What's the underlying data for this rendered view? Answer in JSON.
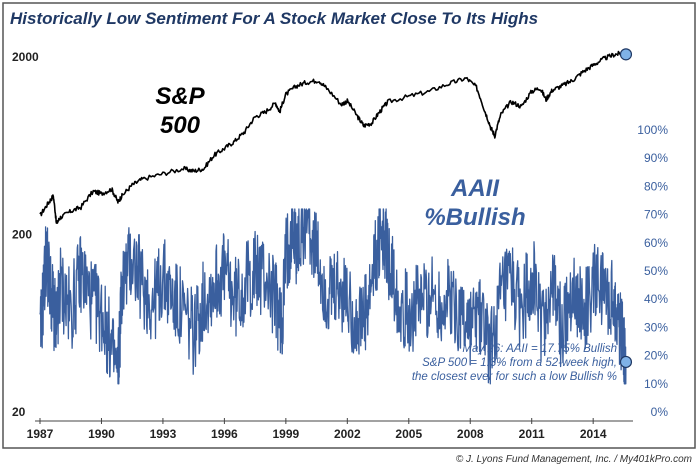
{
  "chart_data": {
    "type": "line",
    "title": "Historically Low Sentiment For A Stock Market Close To Its Highs",
    "x_ticks": [
      "1987",
      "1990",
      "1993",
      "1996",
      "1999",
      "2002",
      "2005",
      "2008",
      "2011",
      "2014"
    ],
    "x_range": [
      1987,
      2015.7
    ],
    "left_axis": {
      "scale": "log",
      "ticks": [
        "20",
        "200",
        "2000"
      ],
      "range": [
        20,
        2800
      ]
    },
    "right_axis": {
      "ticks": [
        "0%",
        "10%",
        "20%",
        "30%",
        "40%",
        "50%",
        "60%",
        "70%",
        "80%",
        "90%",
        "100%"
      ],
      "range": [
        0,
        100
      ]
    },
    "grid": false,
    "series": [
      {
        "name": "S&P\n500",
        "axis": "left",
        "color": "#000000",
        "points": [
          [
            1987.0,
            255
          ],
          [
            1987.4,
            300
          ],
          [
            1987.65,
            330
          ],
          [
            1987.8,
            230
          ],
          [
            1988.0,
            250
          ],
          [
            1988.5,
            270
          ],
          [
            1989.0,
            285
          ],
          [
            1989.6,
            350
          ],
          [
            1990.0,
            340
          ],
          [
            1990.5,
            360
          ],
          [
            1990.8,
            305
          ],
          [
            1991.0,
            330
          ],
          [
            1991.5,
            380
          ],
          [
            1992.0,
            410
          ],
          [
            1993.0,
            440
          ],
          [
            1994.0,
            470
          ],
          [
            1994.5,
            455
          ],
          [
            1995.0,
            470
          ],
          [
            1995.5,
            560
          ],
          [
            1996.0,
            610
          ],
          [
            1996.5,
            670
          ],
          [
            1997.0,
            760
          ],
          [
            1997.5,
            920
          ],
          [
            1998.0,
            980
          ],
          [
            1998.5,
            1100
          ],
          [
            1998.7,
            980
          ],
          [
            1999.0,
            1230
          ],
          [
            1999.5,
            1370
          ],
          [
            2000.0,
            1440
          ],
          [
            2000.6,
            1480
          ],
          [
            2001.0,
            1330
          ],
          [
            2001.7,
            1080
          ],
          [
            2002.0,
            1130
          ],
          [
            2002.5,
            920
          ],
          [
            2002.8,
            820
          ],
          [
            2003.2,
            850
          ],
          [
            2003.6,
            990
          ],
          [
            2004.0,
            1120
          ],
          [
            2005.0,
            1200
          ],
          [
            2006.0,
            1280
          ],
          [
            2007.0,
            1420
          ],
          [
            2007.8,
            1520
          ],
          [
            2008.3,
            1350
          ],
          [
            2008.7,
            1000
          ],
          [
            2009.0,
            800
          ],
          [
            2009.2,
            720
          ],
          [
            2009.5,
            950
          ],
          [
            2010.0,
            1120
          ],
          [
            2010.5,
            1050
          ],
          [
            2011.0,
            1280
          ],
          [
            2011.4,
            1340
          ],
          [
            2011.7,
            1150
          ],
          [
            2012.0,
            1300
          ],
          [
            2012.5,
            1380
          ],
          [
            2013.0,
            1480
          ],
          [
            2013.5,
            1650
          ],
          [
            2014.0,
            1800
          ],
          [
            2014.5,
            1950
          ],
          [
            2015.0,
            2060
          ],
          [
            2015.4,
            2100
          ],
          [
            2015.6,
            2070
          ]
        ]
      },
      {
        "name": "AAII\n%Bullish",
        "axis": "right",
        "color": "#3a5f9e",
        "points": [
          [
            1987.0,
            25
          ],
          [
            1987.3,
            55
          ],
          [
            1987.6,
            40
          ],
          [
            1987.8,
            28
          ],
          [
            1988.0,
            45
          ],
          [
            1988.5,
            35
          ],
          [
            1989.0,
            50
          ],
          [
            1989.5,
            40
          ],
          [
            1990.0,
            35
          ],
          [
            1990.4,
            25
          ],
          [
            1990.8,
            13
          ],
          [
            1991.0,
            45
          ],
          [
            1991.5,
            55
          ],
          [
            1992.0,
            45
          ],
          [
            1992.5,
            38
          ],
          [
            1993.0,
            48
          ],
          [
            1993.5,
            40
          ],
          [
            1994.0,
            35
          ],
          [
            1994.5,
            28
          ],
          [
            1995.0,
            40
          ],
          [
            1995.5,
            45
          ],
          [
            1996.0,
            50
          ],
          [
            1996.5,
            40
          ],
          [
            1997.0,
            45
          ],
          [
            1997.5,
            50
          ],
          [
            1998.0,
            48
          ],
          [
            1998.5,
            40
          ],
          [
            1998.8,
            30
          ],
          [
            1999.0,
            55
          ],
          [
            1999.3,
            65
          ],
          [
            1999.6,
            58
          ],
          [
            2000.0,
            70
          ],
          [
            2000.5,
            55
          ],
          [
            2001.0,
            40
          ],
          [
            2001.5,
            42
          ],
          [
            2002.0,
            40
          ],
          [
            2002.5,
            30
          ],
          [
            2003.0,
            35
          ],
          [
            2003.4,
            55
          ],
          [
            2003.7,
            65
          ],
          [
            2004.0,
            55
          ],
          [
            2004.5,
            40
          ],
          [
            2005.0,
            35
          ],
          [
            2005.5,
            38
          ],
          [
            2006.0,
            42
          ],
          [
            2006.5,
            38
          ],
          [
            2007.0,
            40
          ],
          [
            2007.5,
            35
          ],
          [
            2008.0,
            30
          ],
          [
            2008.5,
            35
          ],
          [
            2009.0,
            22
          ],
          [
            2009.5,
            40
          ],
          [
            2010.0,
            45
          ],
          [
            2010.5,
            35
          ],
          [
            2011.0,
            50
          ],
          [
            2011.5,
            30
          ],
          [
            2012.0,
            45
          ],
          [
            2012.5,
            28
          ],
          [
            2013.0,
            45
          ],
          [
            2013.5,
            35
          ],
          [
            2014.0,
            45
          ],
          [
            2014.5,
            42
          ],
          [
            2015.0,
            38
          ],
          [
            2015.3,
            30
          ],
          [
            2015.5,
            25
          ],
          [
            2015.6,
            17.75
          ]
        ]
      }
    ],
    "series_label_colors": {
      "sp500": "#000000",
      "aaii": "#3a5f9e"
    },
    "annotation": "May 26: AAII = 17.75% Bullish\nS&P 500 = 1.3% from a 52-week high,\nthe closest ever for such a low Bullish %",
    "markers": [
      {
        "series": "S&P\n500",
        "x": 2015.6,
        "y": 2070
      },
      {
        "series": "AAII\n%Bullish",
        "x": 2015.6,
        "y": 17.75
      }
    ],
    "credit": "© J. Lyons Fund Management, Inc. / My401kPro.com",
    "colors": {
      "title": "#1f3864",
      "axis": "#333333",
      "right_axis_text": "#3a5f9e"
    }
  }
}
